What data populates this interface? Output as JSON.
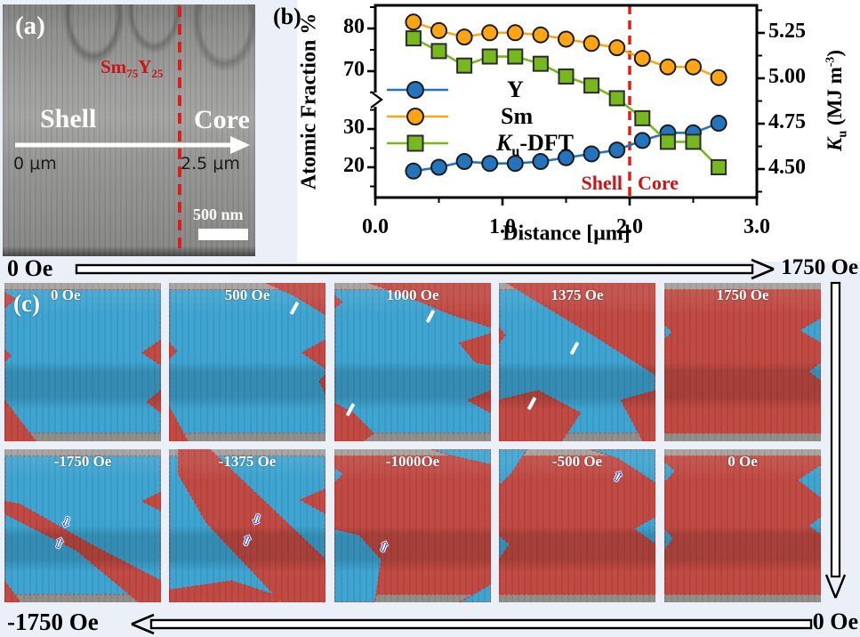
{
  "page": {
    "background": "#ebeff8",
    "panel_b_background": "#ffffff"
  },
  "panel_a": {
    "tag": "(a)",
    "formula": {
      "el1": "Sm",
      "sub1": "75",
      "el2": "Y",
      "sub2": "25"
    },
    "shell": "Shell",
    "core": "Core",
    "arrow_start": "0 μm",
    "arrow_end": "2.5 μm",
    "scalebar": "500 nm"
  },
  "panel_b": {
    "tag": "(b)"
  },
  "chart_data": {
    "type": "line",
    "title": "",
    "xlabel": "Distance [μm]",
    "ylabel_left": "Atomic Fraction %",
    "ylabel_right": "Ku (MJ m-3)",
    "ylabel_right_parts": {
      "k": "K",
      "sub": "u",
      "pre": " (MJ m",
      "sup": "-3",
      "post": ")"
    },
    "xlim": [
      0.0,
      3.0
    ],
    "x_ticks": [
      0.0,
      1.0,
      2.0,
      3.0
    ],
    "x_minor_ticks": [
      0.5,
      1.5,
      2.5
    ],
    "left_ticks": [
      20,
      30,
      70,
      80
    ],
    "left_minor_ticks": [
      15,
      25,
      35,
      65,
      75,
      85
    ],
    "right_ticks": [
      4.5,
      4.75,
      5.0,
      5.25
    ],
    "right_minor_ticks": [
      4.375,
      4.625,
      4.875,
      5.125,
      5.375
    ],
    "axis_break_left": {
      "between": [
        40,
        62
      ]
    },
    "grid": false,
    "legend_position": "center-left",
    "x": [
      0.3,
      0.5,
      0.7,
      0.9,
      1.1,
      1.3,
      1.5,
      1.7,
      1.9,
      2.1,
      2.3,
      2.5,
      2.7
    ],
    "series": [
      {
        "name": "Y",
        "axis": "left",
        "marker": "circle",
        "color": "#2474bd",
        "values": [
          19,
          20,
          21.5,
          21,
          21,
          21.5,
          22.5,
          23.5,
          24.5,
          27,
          29,
          29,
          31.5
        ]
      },
      {
        "name": "Sm",
        "axis": "left",
        "marker": "circle",
        "color": "#ffa414",
        "values": [
          81.5,
          79.5,
          78,
          79,
          79,
          78.5,
          77.5,
          76.5,
          75.5,
          73,
          71,
          71,
          68.5
        ]
      },
      {
        "name": "Ku-DFT",
        "axis": "right",
        "marker": "square",
        "color": "#76b81e",
        "values": [
          5.22,
          5.15,
          5.07,
          5.12,
          5.12,
          5.08,
          5.01,
          4.96,
          4.89,
          4.78,
          4.65,
          4.65,
          4.51
        ]
      }
    ],
    "legend": {
      "item1": "Y",
      "item2": "Sm",
      "item3_parts": {
        "k": "K",
        "sub": "u",
        "rest": "-DFT"
      }
    },
    "divider": {
      "x": 2.0,
      "color": "#df1f14",
      "label_left": "Shell",
      "label_right": "Core",
      "label_color": "#cc1414"
    }
  },
  "panel_c": {
    "tag": "(c)",
    "top_sweep_start": "0 Oe",
    "top_sweep_end": "1750 Oe",
    "bottom_sweep_start": "-1750 Oe",
    "bottom_sweep_end": "0 Oe",
    "top_row_labels": [
      "0 Oe",
      "500 Oe",
      "1000 Oe",
      "1375 Oe",
      "1750 Oe"
    ],
    "bottom_row_labels": [
      "-1750 Oe",
      "-1375 Oe",
      "-1000Oe",
      "-500 Oe",
      "0 Oe"
    ],
    "colors": {
      "up_domain": "#3ba2cf",
      "down_domain": "#bf4740",
      "boundary": "#e42b1e",
      "gray_strip_top": "#a09e99",
      "gray_strip_bottom": "#8f8d88"
    },
    "arrow_glyph": "⇧"
  }
}
